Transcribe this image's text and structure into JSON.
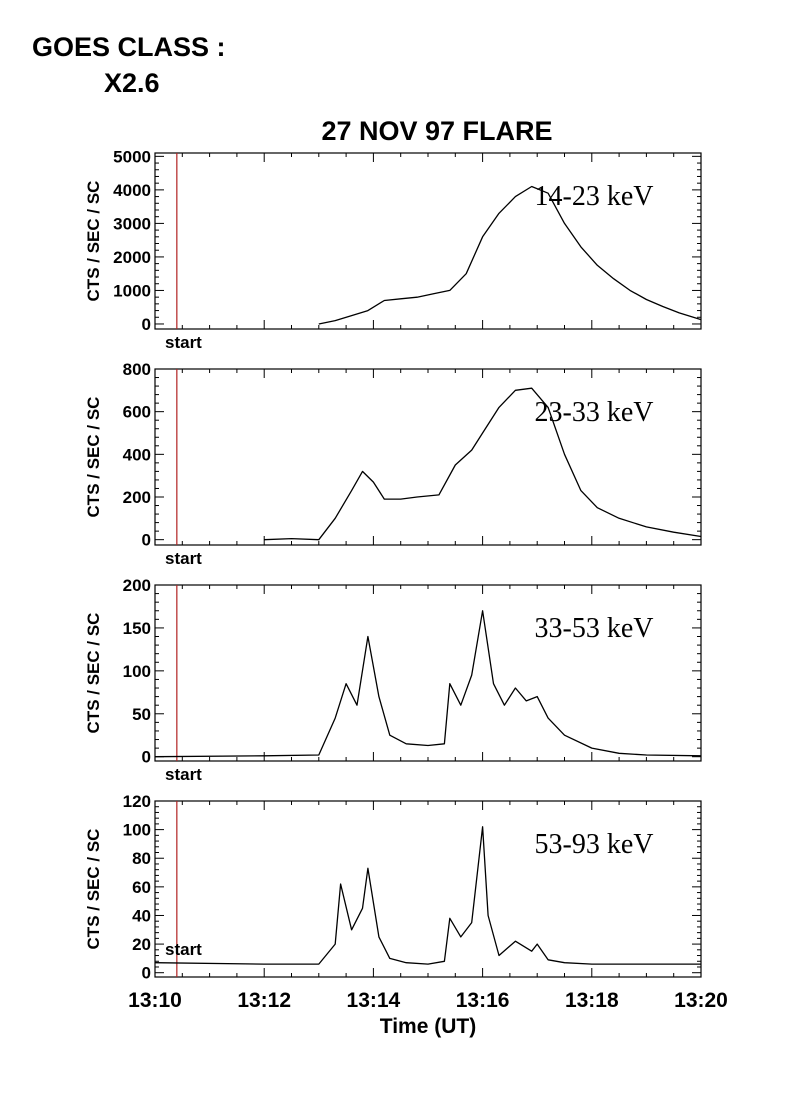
{
  "goes_class": {
    "label": "GOES CLASS :",
    "value": "X2.6"
  },
  "chart_data": {
    "type": "line",
    "title": "27 NOV 97 FLARE",
    "xlabel": "Time (UT)",
    "xlim": [
      "13:10",
      "13:20"
    ],
    "x_tick_labels": [
      "13:10",
      "13:12",
      "13:14",
      "13:16",
      "13:18",
      "13:20"
    ],
    "start_marker": {
      "label": "start",
      "time": "13:10.4",
      "color": "#b22222"
    },
    "panels": [
      {
        "band": "14-23 keV",
        "ylabel": "CTS / SEC / SC",
        "ylim": [
          -150,
          5100
        ],
        "yticks": [
          0,
          1000,
          2000,
          3000,
          4000,
          5000
        ],
        "x": [
          "13:13.0",
          "13:13.3",
          "13:13.6",
          "13:13.9",
          "13:14.2",
          "13:14.5",
          "13:14.8",
          "13:15.1",
          "13:15.4",
          "13:15.7",
          "13:16.0",
          "13:16.3",
          "13:16.6",
          "13:16.9",
          "13:17.2",
          "13:17.5",
          "13:17.8",
          "13:18.1",
          "13:18.4",
          "13:18.7",
          "13:19.0",
          "13:19.3",
          "13:19.6",
          "13:20.0"
        ],
        "values": [
          0,
          100,
          250,
          400,
          700,
          750,
          800,
          900,
          1000,
          1500,
          2600,
          3300,
          3800,
          4100,
          3900,
          3000,
          2300,
          1750,
          1350,
          1000,
          730,
          520,
          330,
          130
        ]
      },
      {
        "band": "23-33 keV",
        "ylabel": "CTS / SEC / SC",
        "ylim": [
          -25,
          800
        ],
        "yticks": [
          0,
          200,
          400,
          600,
          800
        ],
        "x": [
          "13:12.0",
          "13:12.5",
          "13:13.0",
          "13:13.3",
          "13:13.6",
          "13:13.8",
          "13:14.0",
          "13:14.2",
          "13:14.5",
          "13:14.8",
          "13:15.2",
          "13:15.5",
          "13:15.8",
          "13:16.0",
          "13:16.3",
          "13:16.6",
          "13:16.9",
          "13:17.2",
          "13:17.5",
          "13:17.8",
          "13:18.1",
          "13:18.5",
          "13:19.0",
          "13:19.5",
          "13:20.0"
        ],
        "values": [
          0,
          5,
          0,
          100,
          230,
          320,
          270,
          190,
          190,
          200,
          210,
          350,
          420,
          500,
          620,
          700,
          710,
          620,
          400,
          230,
          150,
          100,
          60,
          35,
          15
        ]
      },
      {
        "band": "33-53 keV",
        "ylabel": "CTS / SEC / SC",
        "ylim": [
          -5,
          200
        ],
        "yticks": [
          0,
          50,
          100,
          150,
          200
        ],
        "x": [
          "13:10.0",
          "13:12.0",
          "13:13.0",
          "13:13.3",
          "13:13.5",
          "13:13.7",
          "13:13.9",
          "13:14.1",
          "13:14.3",
          "13:14.6",
          "13:15.0",
          "13:15.3",
          "13:15.4",
          "13:15.6",
          "13:15.8",
          "13:16.0",
          "13:16.2",
          "13:16.4",
          "13:16.6",
          "13:16.8",
          "13:17.0",
          "13:17.2",
          "13:17.5",
          "13:18.0",
          "13:18.5",
          "13:19.0",
          "13:20.0"
        ],
        "values": [
          0,
          1,
          2,
          45,
          85,
          60,
          140,
          70,
          25,
          15,
          13,
          15,
          85,
          60,
          95,
          170,
          85,
          60,
          80,
          65,
          70,
          45,
          25,
          10,
          4,
          2,
          1
        ]
      },
      {
        "band": "53-93 keV",
        "ylabel": "CTS / SEC / SC",
        "ylim": [
          -3,
          120
        ],
        "yticks": [
          0,
          20,
          40,
          60,
          80,
          100,
          120
        ],
        "x": [
          "13:10.0",
          "13:12.0",
          "13:13.0",
          "13:13.3",
          "13:13.4",
          "13:13.6",
          "13:13.8",
          "13:13.9",
          "13:14.1",
          "13:14.3",
          "13:14.6",
          "13:15.0",
          "13:15.3",
          "13:15.4",
          "13:15.6",
          "13:15.8",
          "13:16.0",
          "13:16.1",
          "13:16.3",
          "13:16.6",
          "13:16.9",
          "13:17.0",
          "13:17.2",
          "13:17.5",
          "13:18.0",
          "13:19.0",
          "13:20.0"
        ],
        "values": [
          7,
          6,
          6,
          20,
          62,
          30,
          45,
          73,
          25,
          10,
          7,
          6,
          8,
          38,
          25,
          35,
          102,
          40,
          12,
          22,
          15,
          20,
          9,
          7,
          6,
          6,
          6
        ]
      }
    ]
  }
}
